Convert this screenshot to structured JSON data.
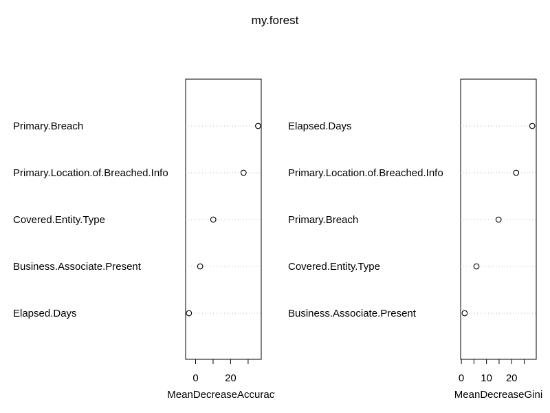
{
  "chart_data": {
    "title": "my.forest",
    "panels": [
      {
        "type": "dotchart",
        "xlabel": "MeanDecreaseAccuracy",
        "categories": [
          "Primary.Breach",
          "Primary.Location.of.Breached.Info",
          "Covered.Entity.Type",
          "Business.Associate.Present",
          "Elapsed.Days"
        ],
        "values": [
          35.7,
          27.4,
          10.1,
          2.6,
          -3.8
        ],
        "xlim": [
          -5.7,
          37.5
        ],
        "ticks": [
          0,
          10,
          20,
          30
        ],
        "tick_labels": [
          "0",
          "",
          "20",
          ""
        ]
      },
      {
        "type": "dotchart",
        "xlabel": "MeanDecreaseGini",
        "categories": [
          "Elapsed.Days",
          "Primary.Location.of.Breached.Info",
          "Primary.Breach",
          "Covered.Entity.Type",
          "Business.Associate.Present"
        ],
        "values": [
          28.2,
          21.8,
          14.8,
          6.0,
          1.3
        ],
        "xlim": [
          -0.3,
          29.8
        ],
        "ticks": [
          0,
          5,
          10,
          15,
          20,
          25
        ],
        "tick_labels": [
          "0",
          "",
          "10",
          "",
          "20",
          ""
        ]
      }
    ]
  }
}
